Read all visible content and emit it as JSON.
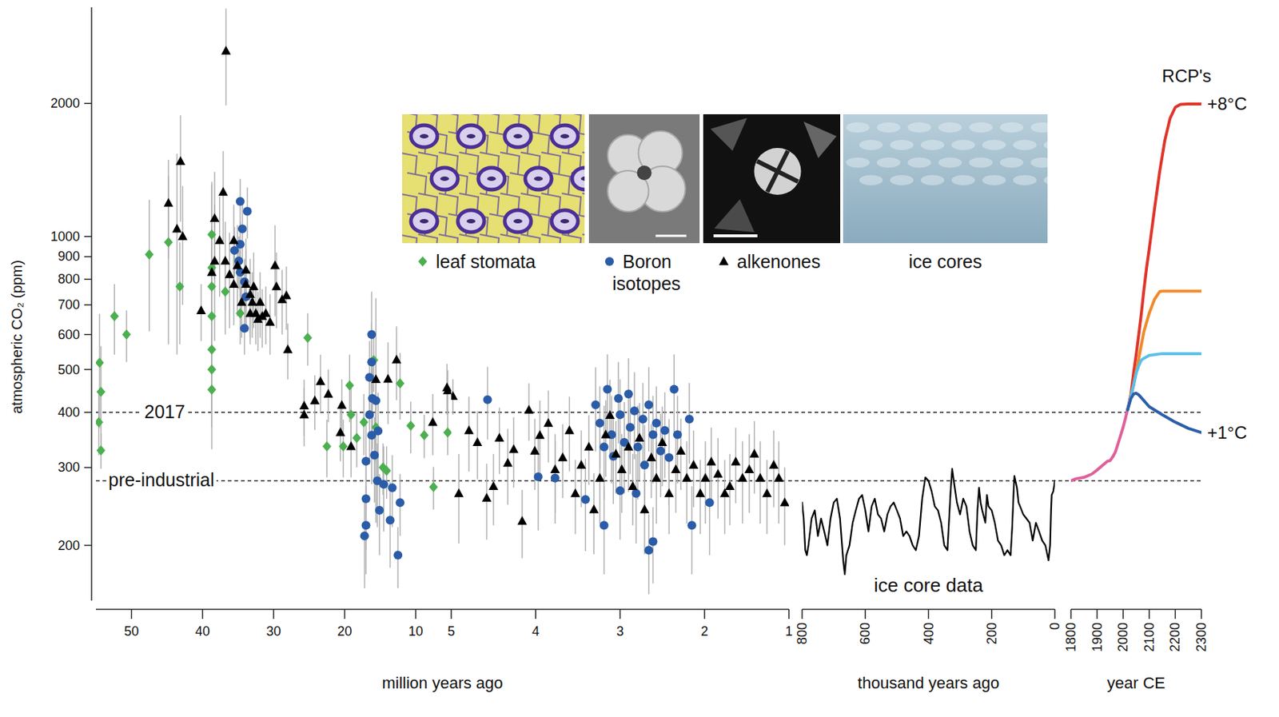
{
  "chart_data": [
    {
      "type": "scatter",
      "ylabel": "atmospheric CO₂ (ppm)",
      "xlabel": "million years ago",
      "log": "y",
      "xlim": [
        55,
        5
      ],
      "xticks": [
        50,
        40,
        30,
        20,
        10
      ],
      "ylim": [
        150,
        3300
      ],
      "yticks": [
        200,
        300,
        400,
        500,
        600,
        700,
        800,
        900,
        1000,
        2000
      ],
      "legend": "top",
      "reference_lines": [
        {
          "label": "2017",
          "value": 400
        },
        {
          "label": "pre-industrial",
          "value": 280
        }
      ],
      "series": [
        {
          "name": "leaf stomata",
          "color": "#4caf50",
          "marker": "diamond",
          "x": [
            54.5,
            54.3,
            54.6,
            54.3,
            52.4,
            50.7,
            47.5,
            44.8,
            43.2,
            38.7,
            38.7,
            38.7,
            38.7,
            38.7,
            38.7,
            38.7,
            36.8,
            34.7,
            25.2,
            22.5,
            20.2,
            19.3,
            19.1,
            18.3,
            17.3,
            15.9,
            15.6,
            14.6,
            14.1,
            12.2,
            10.7,
            8.8,
            7.5,
            5.5
          ],
          "values": [
            518,
            445,
            380,
            328,
            660,
            600,
            910,
            970,
            770,
            1010,
            850,
            770,
            660,
            555,
            500,
            450,
            750,
            670,
            590,
            335,
            335,
            460,
            395,
            350,
            380,
            525,
            370,
            300,
            295,
            465,
            373,
            355,
            271,
            360
          ],
          "errors": [
            150,
            120,
            60,
            30,
            120,
            80,
            300,
            400,
            200,
            300,
            200,
            150,
            150,
            120,
            100,
            80,
            150,
            100,
            80,
            50,
            50,
            80,
            60,
            50,
            60,
            80,
            60,
            40,
            40,
            80,
            50,
            40,
            30,
            40
          ]
        },
        {
          "name": "Boron isotopes",
          "color": "#2b5ca8",
          "marker": "circle",
          "x": [
            34.7,
            33.7,
            34.4,
            34.7,
            34.9,
            34.1,
            33.9,
            34.1,
            35.5,
            34.7,
            16.2,
            16.2,
            16.5,
            16.1,
            16.5,
            16.2,
            17.0,
            17.0,
            17.0,
            17.2,
            15.4,
            15.1,
            14.5,
            13.6,
            13.3,
            12.5,
            12.2,
            15.8,
            15.6,
            15.3
          ],
          "values": [
            1200,
            1140,
            1040,
            960,
            880,
            790,
            730,
            620,
            930,
            830,
            600,
            520,
            480,
            430,
            395,
            355,
            310,
            255,
            222,
            210,
            280,
            240,
            275,
            228,
            270,
            190,
            250,
            320,
            425,
            363
          ],
          "errors": [
            150,
            150,
            150,
            120,
            120,
            100,
            100,
            80,
            120,
            100,
            150,
            120,
            100,
            100,
            90,
            80,
            70,
            60,
            50,
            50,
            60,
            50,
            60,
            50,
            50,
            30,
            40,
            70,
            90,
            80
          ]
        },
        {
          "name": "alkenones",
          "color": "#000000",
          "marker": "triangle",
          "x": [
            44.8,
            43.1,
            43.6,
            42.8,
            40.2,
            38.7,
            38.3,
            37.1,
            36.7,
            37.6,
            36.2,
            35.6,
            35.1,
            33.9,
            33.3,
            33.0,
            32.5,
            32.2,
            31.6,
            31.1,
            30.5,
            29.8,
            29.6,
            28.8,
            28.0,
            38.3,
            35.6,
            34.5,
            33.3,
            31.9,
            33.9,
            36.8,
            32.8,
            28.2,
            25.7,
            25.7,
            23.4,
            22.3,
            24.2,
            20.6,
            19.1,
            20.4,
            15.6,
            13.9,
            12.7,
            7.6,
            5.6,
            5.5
          ],
          "values": [
            1190,
            1480,
            1040,
            1000,
            680,
            830,
            880,
            1260,
            2630,
            980,
            820,
            780,
            860,
            780,
            740,
            710,
            670,
            650,
            660,
            670,
            640,
            860,
            770,
            720,
            555,
            1100,
            980,
            710,
            670,
            710,
            840,
            880,
            770,
            735,
            414,
            395,
            470,
            440,
            425,
            360,
            335,
            415,
            475,
            476,
            526,
            380,
            455,
            448
          ],
          "errors": [
            300,
            400,
            500,
            300,
            100,
            500,
            300,
            300,
            650,
            250,
            200,
            150,
            200,
            150,
            150,
            120,
            100,
            100,
            100,
            100,
            100,
            200,
            150,
            120,
            80,
            300,
            200,
            120,
            100,
            120,
            150,
            200,
            150,
            120,
            60,
            60,
            70,
            60,
            60,
            50,
            50,
            60,
            250,
            100,
            100,
            60,
            60,
            50
          ]
        }
      ]
    },
    {
      "type": "scatter",
      "log": "y",
      "tick_labels": "x",
      "xlim": [
        5,
        1
      ],
      "xticks": [
        5,
        4,
        3,
        2,
        1
      ],
      "ylim": [
        150,
        3300
      ],
      "series": [
        {
          "color": "#2b5ca8",
          "marker": "circle",
          "x": [
            4.57,
            3.97,
            3.41,
            3.29,
            3.24,
            3.19,
            3.15,
            3.1,
            3.08,
            3.02,
            3.0,
            2.95,
            2.9,
            2.88,
            2.83,
            2.79,
            2.73,
            2.71,
            2.66,
            2.61,
            2.57,
            2.52,
            2.47,
            2.42,
            2.36,
            2.32,
            2.66,
            2.61,
            2.18,
            2.15,
            1.94,
            2.81,
            3.0,
            3.19,
            3.77
          ],
          "values": [
            427,
            286,
            254,
            416,
            378,
            334,
            451,
            356,
            318,
            430,
            395,
            342,
            440,
            370,
            403,
            334,
            386,
            304,
            416,
            356,
            378,
            327,
            364,
            316,
            451,
            356,
            195,
            204,
            386,
            222,
            250,
            262,
            266,
            222,
            284
          ],
          "errors": [
            80,
            70,
            60,
            90,
            80,
            80,
            90,
            80,
            70,
            90,
            80,
            80,
            90,
            80,
            90,
            80,
            80,
            70,
            90,
            80,
            80,
            70,
            80,
            70,
            90,
            80,
            40,
            40,
            80,
            50,
            60,
            60,
            60,
            50,
            60
          ]
        },
        {
          "color": "#000000",
          "marker": "triangle",
          "x": [
            4.98,
            4.91,
            4.79,
            4.69,
            4.58,
            4.5,
            4.43,
            4.33,
            4.26,
            4.16,
            4.08,
            4.01,
            3.95,
            3.85,
            3.77,
            3.68,
            3.6,
            3.53,
            3.46,
            3.37,
            3.31,
            3.24,
            3.17,
            3.12,
            3.05,
            2.98,
            2.9,
            2.85,
            2.77,
            2.71,
            2.63,
            2.57,
            2.5,
            2.42,
            2.34,
            2.28,
            2.21,
            2.13,
            2.05,
            1.99,
            1.92,
            1.84,
            1.76,
            1.7,
            1.63,
            1.55,
            1.47,
            1.41,
            1.34,
            1.26,
            1.18,
            1.12,
            1.05
          ],
          "values": [
            435,
            262,
            364,
            342,
            256,
            272,
            350,
            307,
            330,
            227,
            405,
            327,
            355,
            378,
            297,
            316,
            364,
            262,
            304,
            334,
            241,
            284,
            356,
            394,
            322,
            297,
            334,
            272,
            350,
            241,
            316,
            284,
            342,
            262,
            297,
            327,
            284,
            304,
            262,
            284,
            309,
            290,
            262,
            272,
            309,
            284,
            297,
            322,
            284,
            262,
            304,
            284,
            250
          ],
          "errors": [
            40,
            60,
            70,
            60,
            50,
            50,
            60,
            60,
            60,
            40,
            60,
            60,
            70,
            70,
            60,
            60,
            70,
            50,
            60,
            60,
            50,
            60,
            70,
            80,
            60,
            60,
            70,
            50,
            70,
            50,
            60,
            60,
            70,
            50,
            60,
            60,
            60,
            60,
            50,
            60,
            60,
            60,
            50,
            50,
            60,
            60,
            60,
            60,
            60,
            50,
            60,
            60,
            50
          ]
        }
      ]
    },
    {
      "type": "line",
      "log": "y",
      "tick_labels": "x",
      "xlabel": "thousand years ago",
      "annotation": "ice core data",
      "xlim": [
        800,
        0
      ],
      "xticks": [
        800,
        600,
        400,
        200,
        0
      ],
      "ylim": [
        150,
        3300
      ],
      "series": [
        {
          "name": "ice cores",
          "color": "#000000",
          "x": [
            800,
            795,
            790,
            785,
            780,
            770,
            760,
            750,
            740,
            730,
            720,
            710,
            700,
            690,
            680,
            670,
            665,
            660,
            650,
            640,
            630,
            620,
            610,
            600,
            590,
            580,
            570,
            560,
            550,
            540,
            530,
            520,
            510,
            500,
            490,
            480,
            470,
            460,
            450,
            440,
            430,
            420,
            410,
            400,
            390,
            380,
            370,
            360,
            350,
            340,
            330,
            325,
            320,
            310,
            300,
            290,
            280,
            270,
            260,
            250,
            245,
            240,
            235,
            230,
            220,
            215,
            210,
            200,
            190,
            180,
            170,
            160,
            150,
            140,
            135,
            130,
            128,
            120,
            115,
            110,
            100,
            90,
            80,
            70,
            60,
            50,
            40,
            30,
            20,
            15,
            12,
            10,
            5,
            0
          ],
          "values": [
            250,
            230,
            195,
            190,
            200,
            230,
            240,
            210,
            230,
            215,
            200,
            230,
            250,
            255,
            230,
            185,
            172,
            190,
            200,
            225,
            240,
            255,
            260,
            240,
            215,
            245,
            255,
            235,
            230,
            215,
            235,
            245,
            250,
            240,
            230,
            210,
            215,
            210,
            200,
            195,
            210,
            255,
            285,
            280,
            265,
            245,
            240,
            225,
            200,
            195,
            265,
            298,
            280,
            250,
            235,
            255,
            245,
            215,
            200,
            195,
            240,
            270,
            250,
            240,
            225,
            260,
            245,
            240,
            225,
            205,
            200,
            190,
            195,
            190,
            220,
            270,
            287,
            270,
            250,
            245,
            235,
            230,
            225,
            205,
            225,
            215,
            205,
            200,
            185,
            200,
            240,
            260,
            265,
            280
          ]
        }
      ]
    },
    {
      "type": "line",
      "log": "y",
      "tick_labels": "x",
      "title": "RCP's",
      "xlabel": "year CE",
      "xlim": [
        1800,
        2300
      ],
      "xticks": [
        1800,
        1900,
        2000,
        2100,
        2200,
        2300
      ],
      "ylim": [
        150,
        3300
      ],
      "series": [
        {
          "color": "#e0609a",
          "x": [
            1800,
            1820,
            1850,
            1880,
            1900,
            1920,
            1940,
            1950,
            1960,
            1970,
            1980,
            1990,
            2000,
            2010,
            2017
          ],
          "values": [
            280,
            283,
            285,
            290,
            296,
            303,
            310,
            311,
            317,
            325,
            339,
            354,
            370,
            390,
            405
          ]
        },
        {
          "color": "#e0352b",
          "label": "+8°C",
          "x": [
            2017,
            2030,
            2040,
            2050,
            2060,
            2070,
            2080,
            2090,
            2100,
            2120,
            2140,
            2160,
            2180,
            2200,
            2220,
            2250,
            2300
          ],
          "values": [
            405,
            440,
            490,
            540,
            600,
            670,
            760,
            850,
            936,
            1150,
            1400,
            1650,
            1850,
            1960,
            1990,
            1995,
            1995
          ]
        },
        {
          "color": "#f08a2c",
          "x": [
            2017,
            2040,
            2060,
            2080,
            2100,
            2120,
            2140,
            2150,
            2200,
            2300
          ],
          "values": [
            405,
            460,
            530,
            610,
            670,
            720,
            750,
            752,
            752,
            752
          ]
        },
        {
          "color": "#5bbfea",
          "x": [
            2017,
            2040,
            2050,
            2060,
            2070,
            2080,
            2100,
            2120,
            2150,
            2200,
            2300
          ],
          "values": [
            405,
            460,
            490,
            510,
            525,
            530,
            538,
            540,
            543,
            543,
            543
          ]
        },
        {
          "color": "#2b5fa8",
          "label": "+1°C",
          "x": [
            2017,
            2030,
            2040,
            2050,
            2060,
            2080,
            2100,
            2150,
            2200,
            2250,
            2300
          ],
          "values": [
            405,
            430,
            440,
            442,
            438,
            425,
            412,
            395,
            380,
            368,
            360
          ]
        }
      ]
    }
  ]
}
